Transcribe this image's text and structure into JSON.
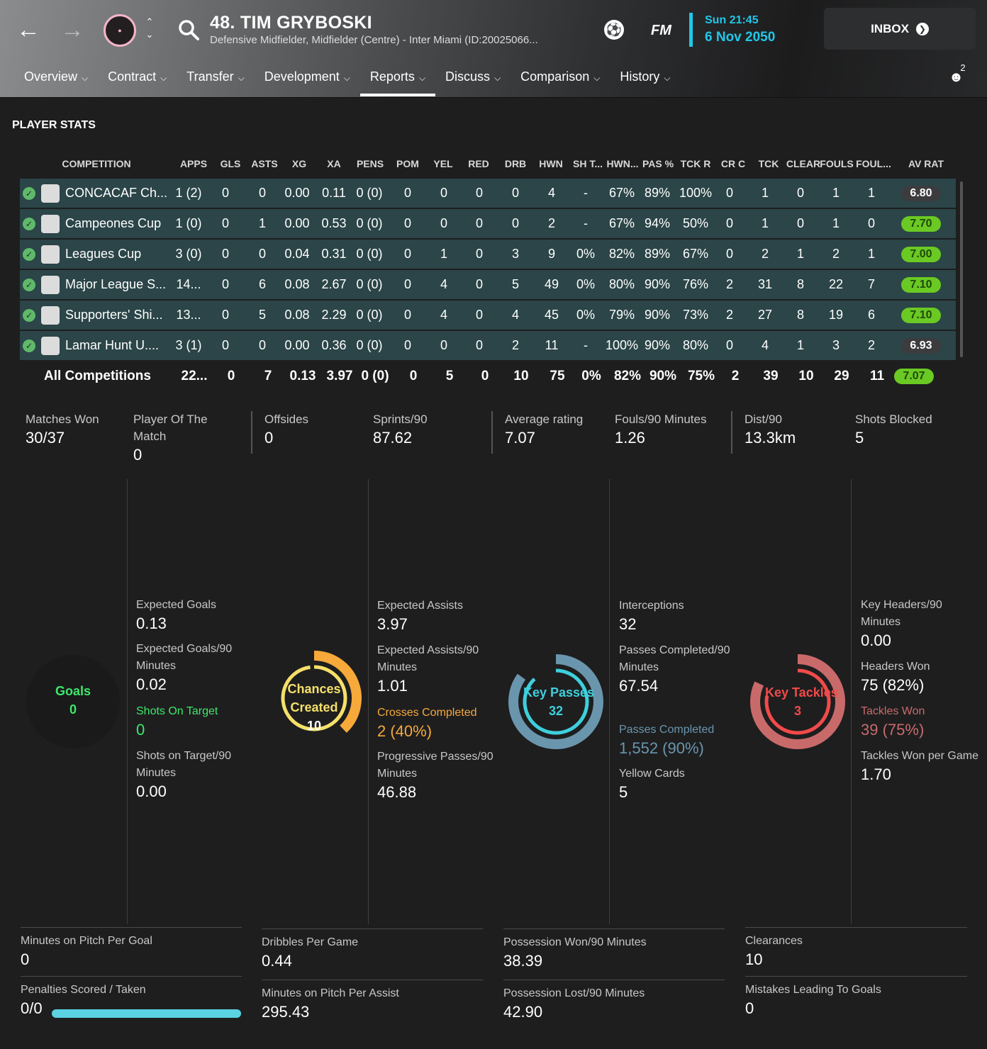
{
  "header": {
    "player_name": "48. TIM GRYBOSKI",
    "player_sub": "Defensive Midfielder, Midfielder (Centre) - Inter Miami (ID:20025066...",
    "fm_logo": "FM",
    "date_day": "Sun 21:45",
    "date_full": "6 Nov 2050",
    "inbox_label": "INBOX",
    "notification_count": "2",
    "icons": [
      "back-arrow-icon",
      "forward-arrow-icon",
      "club-badge",
      "up-down-icon",
      "search-icon",
      "ball-icon",
      "people-icon"
    ]
  },
  "tabs": [
    {
      "label": "Overview"
    },
    {
      "label": "Contract"
    },
    {
      "label": "Transfer"
    },
    {
      "label": "Development"
    },
    {
      "label": "Reports",
      "active": true
    },
    {
      "label": "Discuss"
    },
    {
      "label": "Comparison"
    },
    {
      "label": "History"
    }
  ],
  "section_title": "PLAYER STATS",
  "table": {
    "columns": [
      "COMPETITION",
      "APPS",
      "GLS",
      "ASTS",
      "XG",
      "XA",
      "PENS",
      "POM",
      "YEL",
      "RED",
      "DRB",
      "HWN",
      "SH T...",
      "HWN...",
      "PAS %",
      "TCK R",
      "CR C",
      "TCK",
      "CLEAR",
      "FOULS",
      "FOUL...",
      "AV RAT"
    ],
    "rows": [
      {
        "name": "CONCACAF Ch...",
        "cells": [
          "1 (2)",
          "0",
          "0",
          "0.00",
          "0.11",
          "0 (0)",
          "0",
          "0",
          "0",
          "0",
          "4",
          "-",
          "67%",
          "89%",
          "100%",
          "0",
          "1",
          "0",
          "1",
          "1"
        ],
        "rating": "6.80",
        "rating_style": "gray"
      },
      {
        "name": "Campeones Cup",
        "cells": [
          "1 (0)",
          "0",
          "1",
          "0.00",
          "0.53",
          "0 (0)",
          "0",
          "0",
          "0",
          "0",
          "2",
          "-",
          "67%",
          "94%",
          "50%",
          "0",
          "1",
          "0",
          "1",
          "0"
        ],
        "rating": "7.70",
        "rating_style": "green"
      },
      {
        "name": "Leagues Cup",
        "cells": [
          "3 (0)",
          "0",
          "0",
          "0.04",
          "0.31",
          "0 (0)",
          "0",
          "1",
          "0",
          "3",
          "9",
          "0%",
          "82%",
          "89%",
          "67%",
          "0",
          "2",
          "1",
          "2",
          "1"
        ],
        "rating": "7.00",
        "rating_style": "green"
      },
      {
        "name": "Major League S...",
        "cells": [
          "14...",
          "0",
          "6",
          "0.08",
          "2.67",
          "0 (0)",
          "0",
          "4",
          "0",
          "5",
          "49",
          "0%",
          "80%",
          "90%",
          "76%",
          "2",
          "31",
          "8",
          "22",
          "7"
        ],
        "rating": "7.10",
        "rating_style": "green"
      },
      {
        "name": "Supporters' Shi...",
        "cells": [
          "13...",
          "0",
          "5",
          "0.08",
          "2.29",
          "0 (0)",
          "0",
          "4",
          "0",
          "4",
          "45",
          "0%",
          "79%",
          "90%",
          "73%",
          "2",
          "27",
          "8",
          "19",
          "6"
        ],
        "rating": "7.10",
        "rating_style": "green"
      },
      {
        "name": "Lamar Hunt U....",
        "cells": [
          "3 (1)",
          "0",
          "0",
          "0.00",
          "0.36",
          "0 (0)",
          "0",
          "0",
          "0",
          "2",
          "11",
          "-",
          "100%",
          "90%",
          "80%",
          "0",
          "4",
          "1",
          "3",
          "2"
        ],
        "rating": "6.93",
        "rating_style": "gray"
      }
    ],
    "total": {
      "name": "All Competitions",
      "cells": [
        "22...",
        "0",
        "7",
        "0.13",
        "3.97",
        "0 (0)",
        "0",
        "5",
        "0",
        "10",
        "75",
        "0%",
        "82%",
        "90%",
        "75%",
        "2",
        "39",
        "10",
        "29",
        "11"
      ],
      "rating": "7.07"
    }
  },
  "summary": [
    {
      "label": "Matches Won",
      "value": "30/37"
    },
    {
      "label": "Player Of The Match",
      "value": "0"
    },
    {
      "label": "Offsides",
      "value": "0"
    },
    {
      "label": "Sprints/90",
      "value": "87.62"
    },
    {
      "label": "Average rating",
      "value": "7.07"
    },
    {
      "label": "Fouls/90 Minutes",
      "value": "1.26"
    },
    {
      "label": "Dist/90",
      "value": "13.3km"
    },
    {
      "label": "Shots Blocked",
      "value": "5"
    }
  ],
  "rings": [
    {
      "label": "Goals",
      "value": "0",
      "color": "#3ee86a",
      "fraction": 0
    },
    {
      "label": "Chances Created",
      "value": "10",
      "color": "#f5e06a",
      "accent": "#f7a93a",
      "fraction": 0.4
    },
    {
      "label": "Key Passes",
      "value": "32",
      "color": "#3ecfdc",
      "accent": "#6a96ad",
      "fraction": 0.7
    },
    {
      "label": "Key Tackles",
      "value": "3",
      "color": "#f24a4a",
      "accent": "#c96a6a",
      "fraction": 0.6
    }
  ],
  "column_stats": [
    [
      {
        "label": "Expected Goals",
        "value": "0.13"
      },
      {
        "label": "Expected Goals/90 Minutes",
        "value": "0.02"
      },
      {
        "label": "Shots On Target",
        "value": "0",
        "color": "#3ee86a"
      },
      {
        "label": "Shots on Target/90 Minutes",
        "value": "0.00"
      }
    ],
    [
      {
        "label": "Expected Assists",
        "value": "3.97"
      },
      {
        "label": "Expected Assists/90 Minutes",
        "value": "1.01"
      },
      {
        "label": "Crosses Completed",
        "value": "2 (40%)",
        "color": "#f7a93a"
      },
      {
        "label": "Progressive Passes/90 Minutes",
        "value": "46.88"
      }
    ],
    [
      {
        "label": "Interceptions",
        "value": "32"
      },
      {
        "label": "Passes Completed/90 Minutes",
        "value": "67.54"
      },
      {
        "label": "Passes Completed",
        "value": "1,552 (90%)",
        "color": "#6a96ad"
      },
      {
        "label": "Yellow Cards",
        "value": "5"
      }
    ],
    [
      {
        "label": "Key Headers/90 Minutes",
        "value": "0.00"
      },
      {
        "label": "Headers Won",
        "value": "75 (82%)"
      },
      {
        "label": "Tackles Won",
        "value": "39 (75%)",
        "color": "#c96a6a"
      },
      {
        "label": "Tackles Won per Game",
        "value": "1.70"
      }
    ]
  ],
  "bottom": [
    [
      {
        "label": "Minutes on Pitch Per Goal",
        "value": "0"
      },
      {
        "label": "Penalties Scored / Taken",
        "value": "0/0"
      }
    ],
    [
      {
        "label": "Dribbles Per Game",
        "value": "0.44"
      },
      {
        "label": "Minutes on Pitch Per Assist",
        "value": "295.43"
      }
    ],
    [
      {
        "label": "Possession Won/90 Minutes",
        "value": "38.39"
      },
      {
        "label": "Possession Lost/90 Minutes",
        "value": "42.90"
      }
    ],
    [
      {
        "label": "Clearances",
        "value": "10"
      },
      {
        "label": "Mistakes Leading To Goals",
        "value": "0"
      }
    ]
  ],
  "penalty_fraction": 1.0
}
